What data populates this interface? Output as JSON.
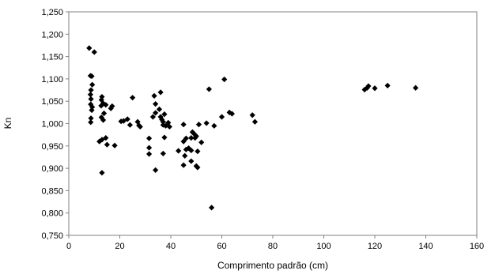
{
  "chart_data": {
    "type": "scatter",
    "title": "",
    "xlabel": "Comprimento padrão (cm)",
    "ylabel": "Kn",
    "xlim": [
      0,
      160
    ],
    "ylim": [
      0.75,
      1.25
    ],
    "grid": false,
    "legend": "none",
    "marker": "diamond",
    "marker_color": "#000000",
    "x_ticks": [
      "0",
      "20",
      "40",
      "60",
      "80",
      "100",
      "120",
      "140",
      "160"
    ],
    "x_tick_values": [
      0,
      20,
      40,
      60,
      80,
      100,
      120,
      140,
      160
    ],
    "y_ticks": [
      "0,750",
      "0,800",
      "0,850",
      "0,900",
      "0,950",
      "1,000",
      "1,050",
      "1,100",
      "1,150",
      "1,200",
      "1,250"
    ],
    "y_tick_values": [
      0.75,
      0.8,
      0.85,
      0.9,
      0.95,
      1.0,
      1.05,
      1.1,
      1.15,
      1.2,
      1.25
    ],
    "series": [
      {
        "points": [
          [
            8.0,
            1.169
          ],
          [
            10.0,
            1.16
          ],
          [
            8.5,
            1.107
          ],
          [
            9.0,
            1.106
          ],
          [
            9.2,
            1.087
          ],
          [
            8.7,
            1.075
          ],
          [
            8.5,
            1.065
          ],
          [
            8.7,
            1.055
          ],
          [
            8.6,
            1.043
          ],
          [
            9.2,
            1.037
          ],
          [
            9.0,
            1.03
          ],
          [
            8.7,
            1.012
          ],
          [
            8.6,
            1.003
          ],
          [
            13.0,
            1.06
          ],
          [
            12.8,
            1.053
          ],
          [
            13.5,
            1.045
          ],
          [
            14.5,
            1.042
          ],
          [
            12.7,
            1.04
          ],
          [
            13.8,
            1.023
          ],
          [
            12.8,
            1.014
          ],
          [
            13.5,
            1.008
          ],
          [
            13.0,
            0.964
          ],
          [
            12.0,
            0.96
          ],
          [
            14.5,
            0.968
          ],
          [
            15.0,
            0.953
          ],
          [
            13.0,
            0.89
          ],
          [
            17.0,
            1.039
          ],
          [
            16.5,
            1.034
          ],
          [
            18.0,
            0.951
          ],
          [
            20.5,
            1.005
          ],
          [
            21.5,
            1.006
          ],
          [
            23.0,
            1.01
          ],
          [
            24.0,
            0.997
          ],
          [
            25.0,
            1.058
          ],
          [
            27.0,
            1.004
          ],
          [
            27.5,
            0.996
          ],
          [
            28.0,
            0.993
          ],
          [
            31.5,
            0.967
          ],
          [
            31.5,
            0.946
          ],
          [
            31.5,
            0.932
          ],
          [
            33.0,
            1.015
          ],
          [
            33.5,
            1.062
          ],
          [
            34.0,
            1.044
          ],
          [
            34.0,
            1.024
          ],
          [
            35.5,
            1.032
          ],
          [
            36.0,
            1.07
          ],
          [
            34.0,
            0.896
          ],
          [
            36.0,
            1.015
          ],
          [
            36.5,
            1.009
          ],
          [
            37.0,
            1.004
          ],
          [
            37.5,
            1.021
          ],
          [
            37.0,
            0.997
          ],
          [
            38.0,
            0.995
          ],
          [
            39.0,
            1.002
          ],
          [
            39.5,
            0.993
          ],
          [
            37.5,
            0.969
          ],
          [
            37.0,
            0.933
          ],
          [
            43.0,
            0.939
          ],
          [
            45.0,
            0.998
          ],
          [
            45.0,
            0.96
          ],
          [
            46.0,
            0.967
          ],
          [
            46.0,
            0.942
          ],
          [
            45.5,
            0.928
          ],
          [
            45.0,
            0.907
          ],
          [
            47.0,
            0.945
          ],
          [
            48.0,
            0.968
          ],
          [
            48.0,
            0.94
          ],
          [
            48.5,
            0.981
          ],
          [
            48.0,
            0.916
          ],
          [
            49.0,
            0.978
          ],
          [
            49.5,
            0.968
          ],
          [
            50.0,
            0.972
          ],
          [
            50.5,
            0.938
          ],
          [
            50.0,
            0.905
          ],
          [
            50.5,
            0.902
          ],
          [
            51.0,
            0.998
          ],
          [
            52.0,
            0.958
          ],
          [
            54.0,
            1.001
          ],
          [
            55.0,
            1.077
          ],
          [
            57.0,
            0.995
          ],
          [
            56.0,
            0.812
          ],
          [
            60.0,
            1.015
          ],
          [
            61.0,
            1.099
          ],
          [
            63.0,
            1.025
          ],
          [
            64.0,
            1.022
          ],
          [
            72.0,
            1.019
          ],
          [
            73.0,
            1.004
          ],
          [
            116.0,
            1.076
          ],
          [
            117.0,
            1.08
          ],
          [
            117.5,
            1.084
          ],
          [
            120.0,
            1.079
          ],
          [
            125.0,
            1.085
          ],
          [
            136.0,
            1.08
          ]
        ]
      }
    ]
  }
}
